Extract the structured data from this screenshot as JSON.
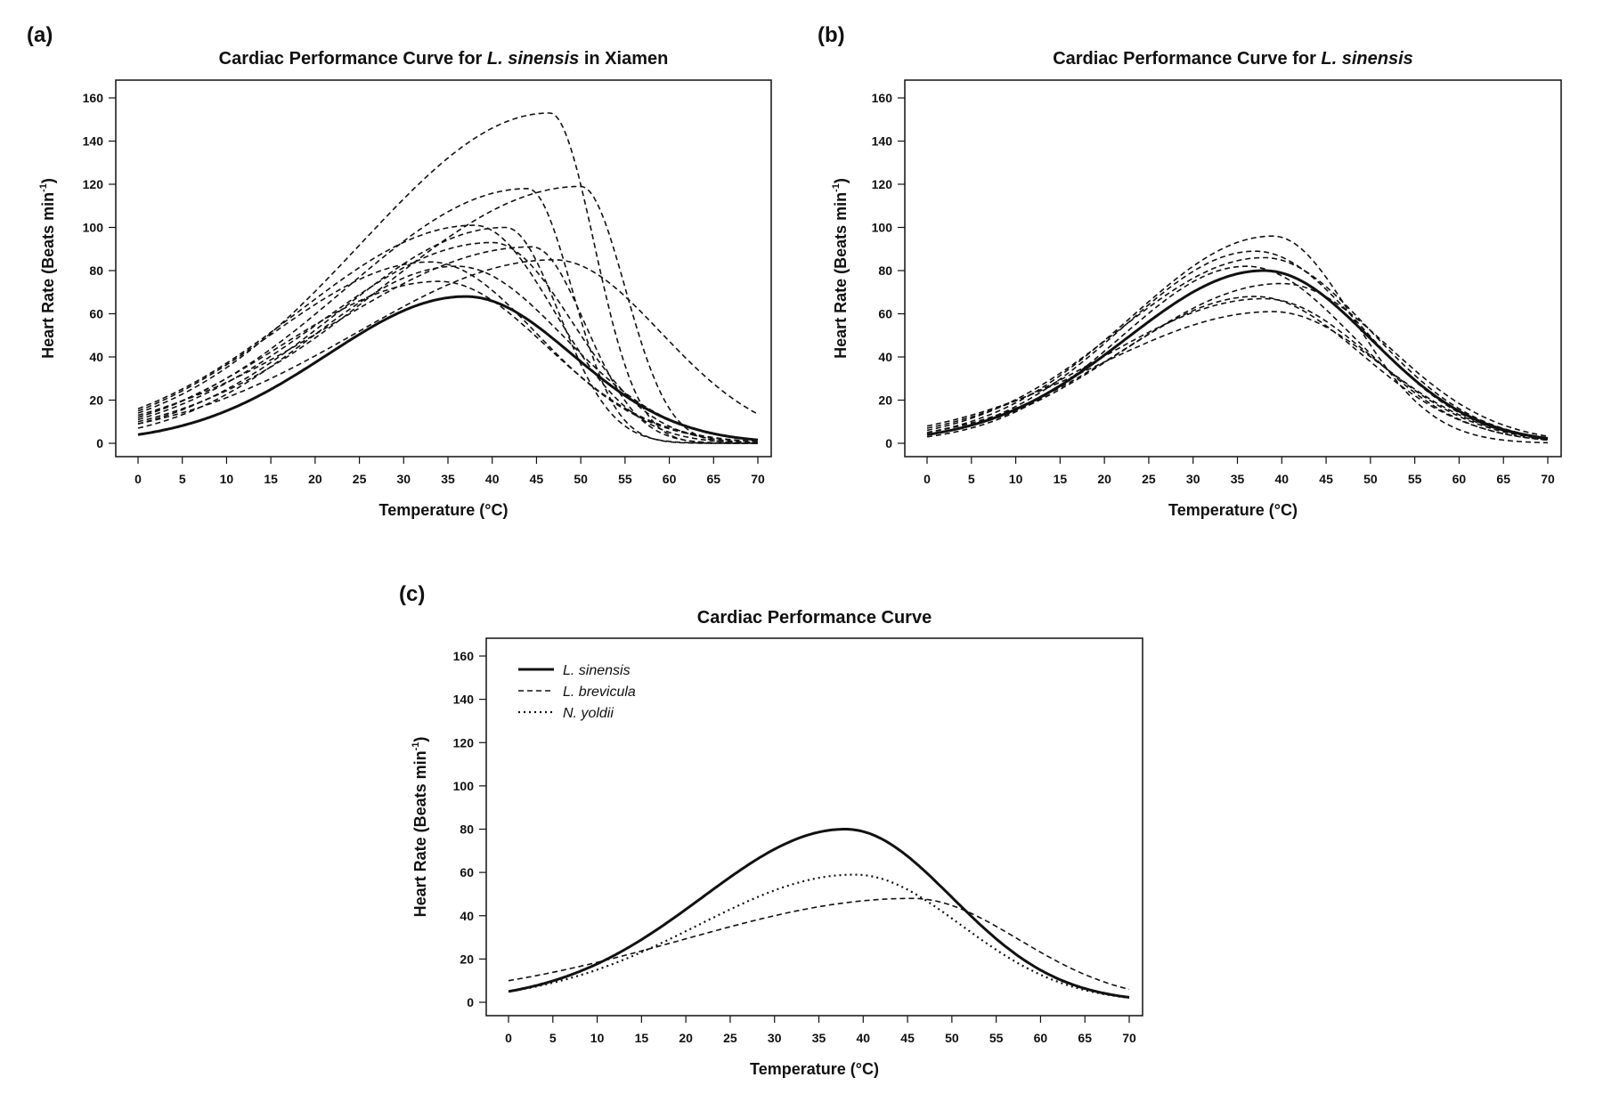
{
  "chart_data": [
    {
      "type": "line",
      "panel_label": "(a)",
      "title_prefix": "Cardiac Performance Curve for ",
      "title_italic": "L. sinensis",
      "title_suffix": " in Xiamen",
      "xlabel": "Temperature (°C)",
      "ylabel": "Heart Rate (Beats min",
      "ylabel_sup": "-1",
      "ylabel_close": ")",
      "xlim": [
        0,
        70
      ],
      "ylim": [
        0,
        160
      ],
      "xticks": [
        "0",
        "5",
        "10",
        "15",
        "20",
        "25",
        "30",
        "35",
        "40",
        "45",
        "50",
        "55",
        "60",
        "65",
        "70"
      ],
      "yticks": [
        "0",
        "20",
        "40",
        "60",
        "80",
        "100",
        "120",
        "140",
        "160"
      ],
      "series": [
        {
          "style": "solid",
          "peak_x": 37,
          "peak_y": 68,
          "y0": 4
        },
        {
          "style": "dashed",
          "peak_x": 46.5,
          "peak_y": 153,
          "y0": 14
        },
        {
          "style": "dashed",
          "peak_x": 44,
          "peak_y": 118,
          "y0": 12
        },
        {
          "style": "dashed",
          "peak_x": 50,
          "peak_y": 119,
          "y0": 10
        },
        {
          "style": "dashed",
          "peak_x": 38,
          "peak_y": 101,
          "y0": 16
        },
        {
          "style": "dashed",
          "peak_x": 41.5,
          "peak_y": 100,
          "y0": 9
        },
        {
          "style": "dashed",
          "peak_x": 44.5,
          "peak_y": 91,
          "y0": 13
        },
        {
          "style": "dashed",
          "peak_x": 33,
          "peak_y": 84,
          "y0": 15
        },
        {
          "style": "dashed",
          "peak_x": 40,
          "peak_y": 93,
          "y0": 11
        },
        {
          "style": "dashed",
          "peak_x": 36,
          "peak_y": 82,
          "y0": 7
        },
        {
          "style": "dashed",
          "peak_x": 34,
          "peak_y": 75,
          "y0": 12
        },
        {
          "style": "dashed",
          "peak_x": 47,
          "peak_y": 85,
          "y0": 9
        }
      ]
    },
    {
      "type": "line",
      "panel_label": "(b)",
      "title_prefix": "Cardiac Performance Curve for ",
      "title_italic": "L. sinensis",
      "title_suffix": "",
      "xlabel": "Temperature (°C)",
      "ylabel": "Heart Rate (Beats min",
      "ylabel_sup": "-1",
      "ylabel_close": ")",
      "xlim": [
        0,
        70
      ],
      "ylim": [
        0,
        160
      ],
      "xticks": [
        "0",
        "5",
        "10",
        "15",
        "20",
        "25",
        "30",
        "35",
        "40",
        "45",
        "50",
        "55",
        "60",
        "65",
        "70"
      ],
      "yticks": [
        "0",
        "20",
        "40",
        "60",
        "80",
        "100",
        "120",
        "140",
        "160"
      ],
      "series": [
        {
          "style": "solid",
          "peak_x": 38,
          "peak_y": 80,
          "y0": 4
        },
        {
          "style": "dashed",
          "peak_x": 39,
          "peak_y": 96,
          "y0": 5
        },
        {
          "style": "dashed",
          "peak_x": 37,
          "peak_y": 89,
          "y0": 4
        },
        {
          "style": "dashed",
          "peak_x": 38,
          "peak_y": 86,
          "y0": 6
        },
        {
          "style": "dashed",
          "peak_x": 40,
          "peak_y": 74,
          "y0": 5
        },
        {
          "style": "dashed",
          "peak_x": 37,
          "peak_y": 68,
          "y0": 4
        },
        {
          "style": "dashed",
          "peak_x": 38,
          "peak_y": 67,
          "y0": 7
        },
        {
          "style": "dashed",
          "peak_x": 39,
          "peak_y": 61,
          "y0": 8
        },
        {
          "style": "dashed",
          "peak_x": 36,
          "peak_y": 82,
          "y0": 3
        }
      ]
    },
    {
      "type": "line",
      "panel_label": "(c)",
      "title_prefix": "Cardiac Performance Curve",
      "title_italic": "",
      "title_suffix": "",
      "xlabel": "Temperature (°C)",
      "ylabel": "Heart Rate (Beats min",
      "ylabel_sup": "-1",
      "ylabel_close": ")",
      "xlim": [
        0,
        70
      ],
      "ylim": [
        0,
        160
      ],
      "xticks": [
        "0",
        "5",
        "10",
        "15",
        "20",
        "25",
        "30",
        "35",
        "40",
        "45",
        "50",
        "55",
        "60",
        "65",
        "70"
      ],
      "yticks": [
        "0",
        "20",
        "40",
        "60",
        "80",
        "100",
        "120",
        "140",
        "160"
      ],
      "legend_position": "top-left",
      "series": [
        {
          "name": "L. sinensis",
          "style": "solid",
          "peak_x": 38,
          "peak_y": 80,
          "y0": 5
        },
        {
          "name": "L. brevicula",
          "style": "dashed",
          "peak_x": 45.5,
          "peak_y": 48,
          "y0": 10
        },
        {
          "name": "N. yoldii",
          "style": "dotted",
          "peak_x": 39,
          "peak_y": 59,
          "y0": 5
        }
      ]
    }
  ]
}
